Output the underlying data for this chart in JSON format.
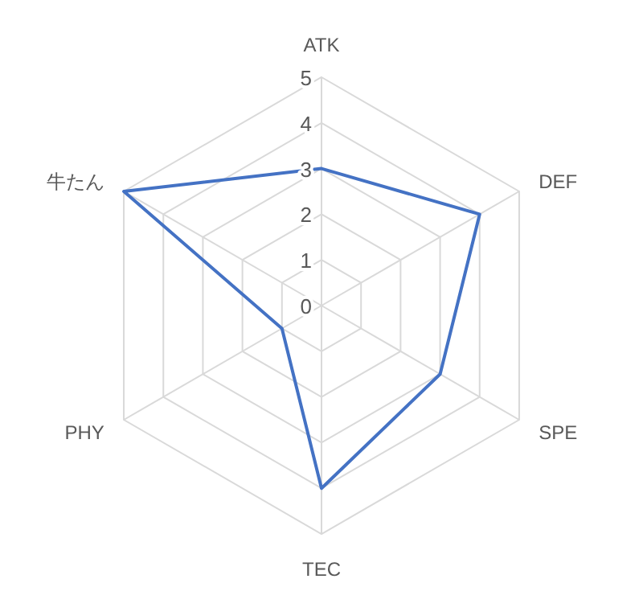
{
  "chart_data": {
    "type": "radar",
    "categories": [
      "ATK",
      "DEF",
      "SPE",
      "TEC",
      "PHY",
      "牛たん"
    ],
    "series": [
      {
        "color": "#4472c4",
        "values": [
          3,
          4,
          3,
          4,
          1,
          5
        ]
      }
    ],
    "ylim": [
      0,
      5
    ],
    "yticks": [
      0,
      1,
      2,
      3,
      4,
      5
    ],
    "grid": true,
    "marker": "none",
    "line_style": "solid"
  }
}
